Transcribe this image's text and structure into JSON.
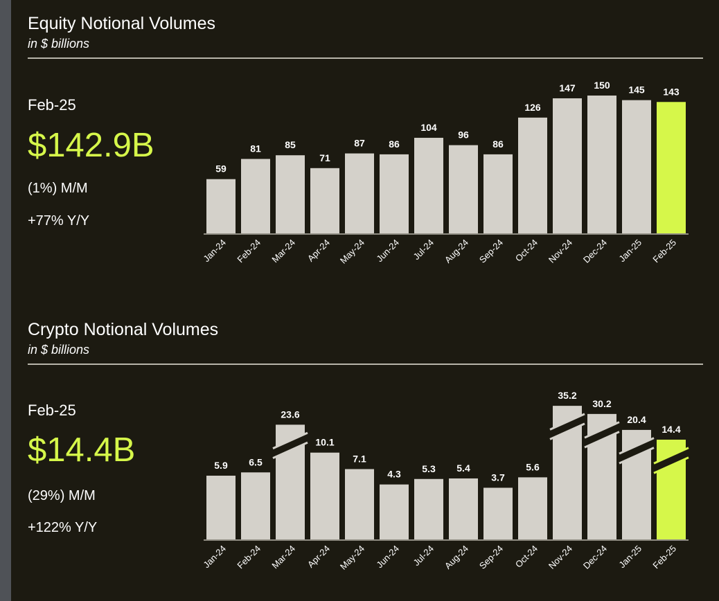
{
  "colors": {
    "bar": "#d4d1ca",
    "highlight": "#d6f74a",
    "background": "#1c1a11",
    "text": "#ffffff"
  },
  "equity": {
    "title": "Equity Notional Volumes",
    "subtitle": "in $ billions",
    "period": "Feb-25",
    "value": "$142.9B",
    "mom": "(1%) M/M",
    "yoy": "+77% Y/Y"
  },
  "crypto": {
    "title": "Crypto Notional Volumes",
    "subtitle": "in $ billions",
    "period": "Feb-25",
    "value": "$14.4B",
    "mom": "(29%) M/M",
    "yoy": "+122% Y/Y"
  },
  "chart_data": [
    {
      "type": "bar",
      "title": "Equity Notional Volumes",
      "ylabel": "in $ billions",
      "categories": [
        "Jan-24",
        "Feb-24",
        "Mar-24",
        "Apr-24",
        "May-24",
        "Jun-24",
        "Jul-24",
        "Aug-24",
        "Sep-24",
        "Oct-24",
        "Nov-24",
        "Dec-24",
        "Jan-25",
        "Feb-25"
      ],
      "values": [
        59,
        81,
        85,
        71,
        87,
        86,
        104,
        96,
        86,
        126,
        147,
        150,
        145,
        143
      ],
      "labels": [
        "59",
        "81",
        "85",
        "71",
        "87",
        "86",
        "104",
        "96",
        "86",
        "126",
        "147",
        "150",
        "145",
        "143"
      ],
      "highlight_index": 13,
      "ylim": [
        0,
        150
      ],
      "grid": false
    },
    {
      "type": "bar",
      "title": "Crypto Notional Volumes",
      "ylabel": "in $ billions",
      "categories": [
        "Jan-24",
        "Feb-24",
        "Mar-24",
        "Apr-24",
        "May-24",
        "Jun-24",
        "Jul-24",
        "Aug-24",
        "Sep-24",
        "Oct-24",
        "Nov-24",
        "Dec-24",
        "Jan-25",
        "Feb-25"
      ],
      "values": [
        5.9,
        6.5,
        23.6,
        10.1,
        7.1,
        4.3,
        5.3,
        5.4,
        3.7,
        5.6,
        35.2,
        30.2,
        20.4,
        14.4
      ],
      "labels": [
        "5.9",
        "6.5",
        "23.6",
        "10.1",
        "7.1",
        "4.3",
        "5.3",
        "5.4",
        "3.7",
        "5.6",
        "35.2",
        "30.2",
        "20.4",
        "14.4"
      ],
      "broken_axis_bars": [
        "Mar-24",
        "Nov-24",
        "Dec-24",
        "Jan-25",
        "Feb-25"
      ],
      "highlight_index": 13,
      "grid": false
    }
  ]
}
